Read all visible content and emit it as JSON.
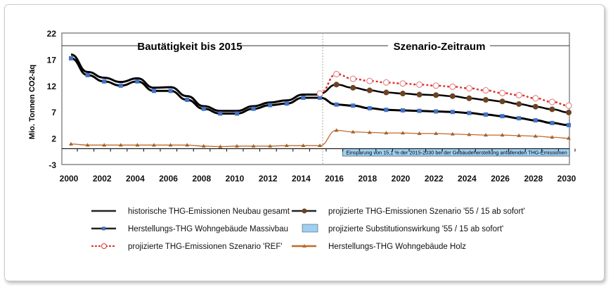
{
  "chart_data": {
    "type": "line",
    "ylabel": "Mio. Tonnen CO2-äq",
    "ylim": [
      -3,
      22
    ],
    "yticks": [
      22,
      17,
      12,
      7,
      2,
      -3
    ],
    "xlim": [
      2000,
      2030
    ],
    "xticks": [
      2000,
      2002,
      2004,
      2006,
      2008,
      2010,
      2012,
      2014,
      2016,
      2018,
      2020,
      2022,
      2024,
      2026,
      2028,
      2030
    ],
    "period_labels": [
      "Bautätigkeit bis 2015",
      "Szenario-Zeitraum"
    ],
    "annotation": "Einsparung von 15,1 % der 2015-2030 bei der Gebäudeherstellung anfallenden THG-Emissionen",
    "series": [
      {
        "name": "historische THG-Emissionen Neubau gesamt",
        "color": "#000000",
        "x": [
          2000,
          2001,
          2002,
          2003,
          2004,
          2005,
          2006,
          2007,
          2008,
          2009,
          2010,
          2011,
          2012,
          2013,
          2014,
          2015
        ],
        "values": [
          17.9,
          14.6,
          13.5,
          12.7,
          13.4,
          11.6,
          11.7,
          10.0,
          8.1,
          7.2,
          7.2,
          8.1,
          8.8,
          9.2,
          10.3,
          10.3
        ]
      },
      {
        "name": "Herstellungs-THG Wohngebäude Massivbau",
        "color": "#4472c4",
        "x": [
          2000,
          2001,
          2002,
          2003,
          2004,
          2005,
          2006,
          2007,
          2008,
          2009,
          2010,
          2011,
          2012,
          2013,
          2014,
          2015,
          2016,
          2017,
          2018,
          2019,
          2020,
          2021,
          2022,
          2023,
          2024,
          2025,
          2026,
          2027,
          2028,
          2029,
          2030
        ],
        "values": [
          17.2,
          14.0,
          12.8,
          12.0,
          12.8,
          11.0,
          11.0,
          9.3,
          7.6,
          6.7,
          6.7,
          7.6,
          8.3,
          8.6,
          9.7,
          9.7,
          8.4,
          8.2,
          7.7,
          7.4,
          7.3,
          7.2,
          7.1,
          7.0,
          6.8,
          6.5,
          6.2,
          5.8,
          5.4,
          4.9,
          4.5
        ]
      },
      {
        "name": "projizierte THG-Emissionen Szenario 'REF'",
        "color": "#e0302a",
        "x": [
          2015,
          2016,
          2017,
          2018,
          2019,
          2020,
          2021,
          2022,
          2023,
          2024,
          2025,
          2026,
          2027,
          2028,
          2029,
          2030
        ],
        "values": [
          10.5,
          14.2,
          13.3,
          12.9,
          12.6,
          12.4,
          12.2,
          12.0,
          11.8,
          11.5,
          11.1,
          10.6,
          10.2,
          9.6,
          8.9,
          8.2
        ]
      },
      {
        "name": "projizierte THG-Emissionen Szenario '55 / 15 ab sofort'",
        "color": "#6b4423",
        "x": [
          2015,
          2016,
          2017,
          2018,
          2019,
          2020,
          2021,
          2022,
          2023,
          2024,
          2025,
          2026,
          2027,
          2028,
          2029,
          2030
        ],
        "values": [
          10.5,
          12.2,
          11.6,
          11.1,
          10.7,
          10.5,
          10.3,
          10.2,
          10.0,
          9.6,
          9.3,
          9.0,
          8.5,
          8.0,
          7.5,
          6.9
        ]
      },
      {
        "name": "projizierte Substitutionswirkung '55 / 15 ab sofort'",
        "color": "#9dd0f3",
        "x": [
          2016.5,
          2030
        ],
        "values": [
          -1.4,
          -1.4
        ]
      },
      {
        "name": "Herstellungs-THG Wohngebäude Holz",
        "color": "#c0692a",
        "x": [
          2000,
          2001,
          2002,
          2003,
          2004,
          2005,
          2006,
          2007,
          2008,
          2009,
          2010,
          2011,
          2012,
          2013,
          2014,
          2015,
          2016,
          2017,
          2018,
          2019,
          2020,
          2021,
          2022,
          2023,
          2024,
          2025,
          2026,
          2027,
          2028,
          2029,
          2030
        ],
        "values": [
          0.9,
          0.7,
          0.7,
          0.7,
          0.7,
          0.7,
          0.7,
          0.7,
          0.5,
          0.4,
          0.5,
          0.5,
          0.5,
          0.6,
          0.6,
          0.6,
          3.5,
          3.2,
          3.1,
          3.0,
          3.0,
          2.9,
          2.9,
          2.8,
          2.7,
          2.6,
          2.6,
          2.5,
          2.4,
          2.2,
          2.0
        ]
      }
    ]
  }
}
